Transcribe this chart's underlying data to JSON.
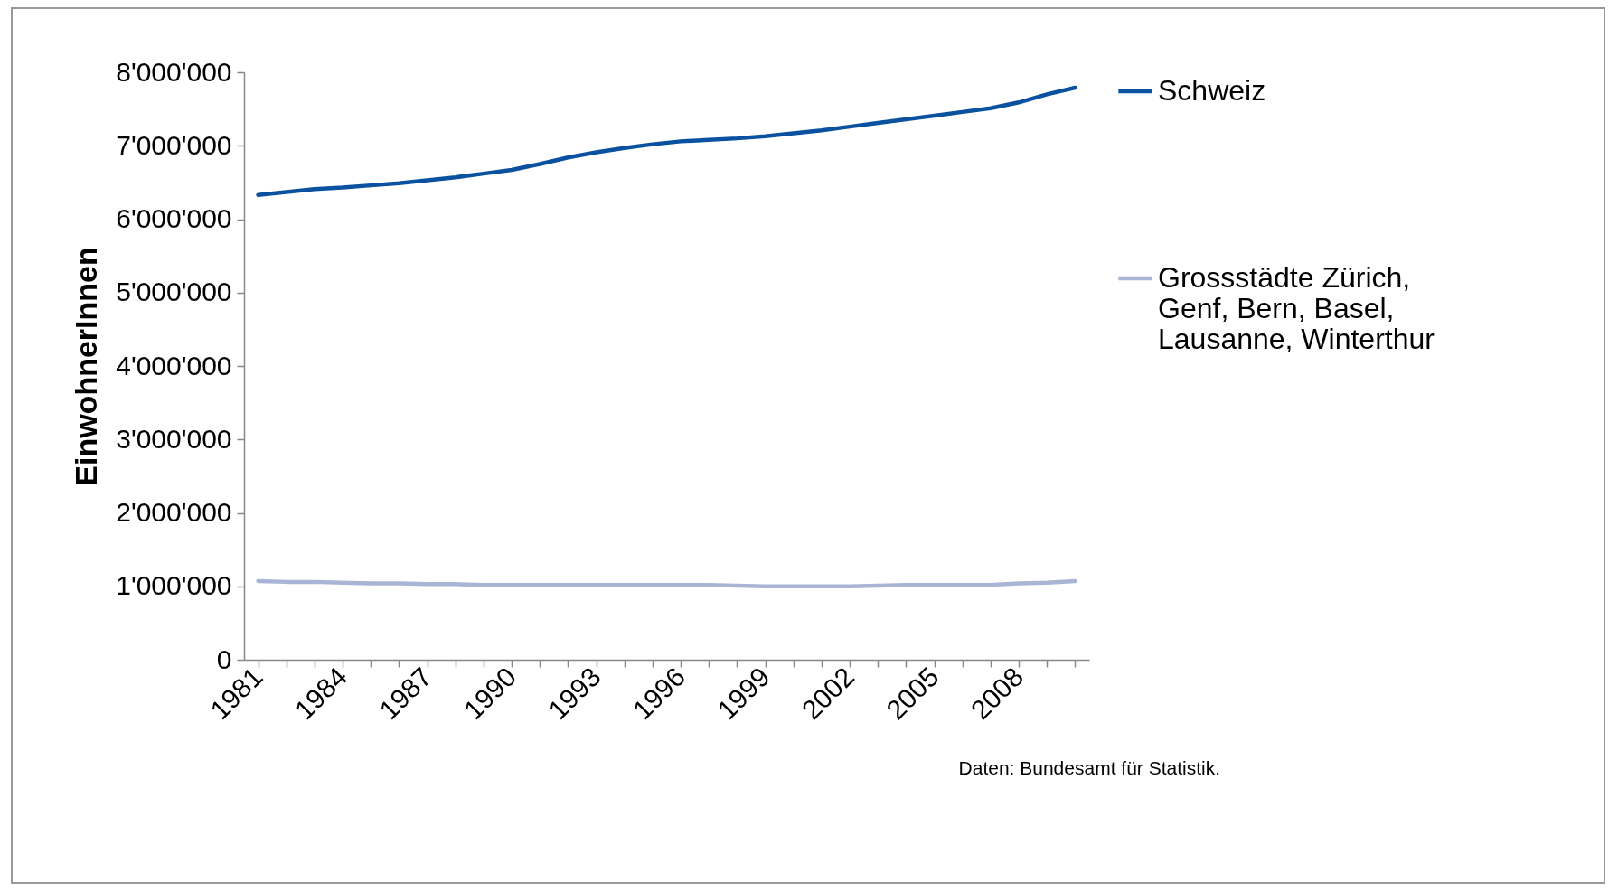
{
  "chart_data": {
    "type": "line",
    "ylabel": "EinwohnerInnen",
    "categories": [
      "1981",
      null,
      null,
      "1984",
      null,
      null,
      "1987",
      null,
      null,
      "1990",
      null,
      null,
      "1993",
      null,
      null,
      "1996",
      null,
      null,
      "1999",
      null,
      null,
      "2002",
      null,
      null,
      "2005",
      null,
      null,
      "2008",
      null,
      null
    ],
    "series": [
      {
        "name": "Schweiz",
        "color": "#0a52a0",
        "values": [
          6330000,
          6370000,
          6410000,
          6430000,
          6460000,
          6490000,
          6530000,
          6570000,
          6620000,
          6670000,
          6750000,
          6840000,
          6910000,
          6970000,
          7020000,
          7060000,
          7080000,
          7100000,
          7130000,
          7170000,
          7210000,
          7260000,
          7310000,
          7360000,
          7410000,
          7460000,
          7510000,
          7590000,
          7700000,
          7790000
        ]
      },
      {
        "name": "Grossstädte Zürich, Genf, Bern, Basel, Lausanne, Winterthur",
        "color": "#a9b5d5",
        "values": [
          1070000,
          1060000,
          1060000,
          1050000,
          1040000,
          1040000,
          1030000,
          1030000,
          1020000,
          1020000,
          1020000,
          1020000,
          1020000,
          1020000,
          1020000,
          1020000,
          1020000,
          1010000,
          1000000,
          1000000,
          1000000,
          1000000,
          1010000,
          1020000,
          1020000,
          1020000,
          1020000,
          1040000,
          1050000,
          1070000
        ]
      }
    ],
    "ylim": [
      0,
      8000000
    ],
    "yticks": [
      0,
      {
        "value": 1000000,
        "label": "1'000'000"
      },
      {
        "value": 2000000,
        "label": "2'000'000"
      },
      {
        "value": 3000000,
        "label": "3'000'000"
      },
      {
        "value": 4000000,
        "label": "4'000'000"
      },
      {
        "value": 5000000,
        "label": "5'000'000"
      },
      {
        "value": 6000000,
        "label": "6'000'000"
      },
      {
        "value": 7000000,
        "label": "7'000'000"
      },
      {
        "value": 8000000,
        "label": "8'000'000"
      }
    ],
    "grid": false,
    "legend": "right",
    "marker": "none",
    "line_style": "solid",
    "annotations": [
      "Daten: Bundesamt für Statistik."
    ]
  }
}
